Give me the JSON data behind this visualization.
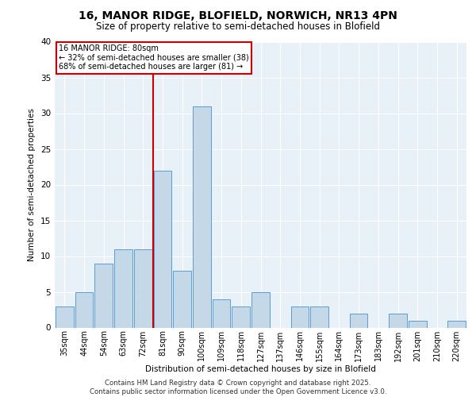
{
  "title_line1": "16, MANOR RIDGE, BLOFIELD, NORWICH, NR13 4PN",
  "title_line2": "Size of property relative to semi-detached houses in Blofield",
  "xlabel": "Distribution of semi-detached houses by size in Blofield",
  "ylabel": "Number of semi-detached properties",
  "categories": [
    "35sqm",
    "44sqm",
    "54sqm",
    "63sqm",
    "72sqm",
    "81sqm",
    "90sqm",
    "100sqm",
    "109sqm",
    "118sqm",
    "127sqm",
    "137sqm",
    "146sqm",
    "155sqm",
    "164sqm",
    "173sqm",
    "183sqm",
    "192sqm",
    "201sqm",
    "210sqm",
    "220sqm"
  ],
  "values": [
    3,
    5,
    9,
    11,
    11,
    22,
    8,
    31,
    4,
    3,
    5,
    0,
    3,
    3,
    0,
    2,
    0,
    2,
    1,
    0,
    1
  ],
  "bar_color": "#c5d8e8",
  "bar_edge_color": "#5b9bd5",
  "annotation_title": "16 MANOR RIDGE: 80sqm",
  "annotation_line2": "← 32% of semi-detached houses are smaller (38)",
  "annotation_line3": "68% of semi-detached houses are larger (81) →",
  "vline_color": "#cc0000",
  "annotation_box_color": "#ffffff",
  "annotation_box_edge": "#cc0000",
  "footer_line1": "Contains HM Land Registry data © Crown copyright and database right 2025.",
  "footer_line2": "Contains public sector information licensed under the Open Government Licence v3.0.",
  "ylim": [
    0,
    40
  ],
  "yticks": [
    0,
    5,
    10,
    15,
    20,
    25,
    30,
    35,
    40
  ],
  "bg_color": "#e8f0f8",
  "grid_color": "#ffffff",
  "vline_index": 4.5
}
